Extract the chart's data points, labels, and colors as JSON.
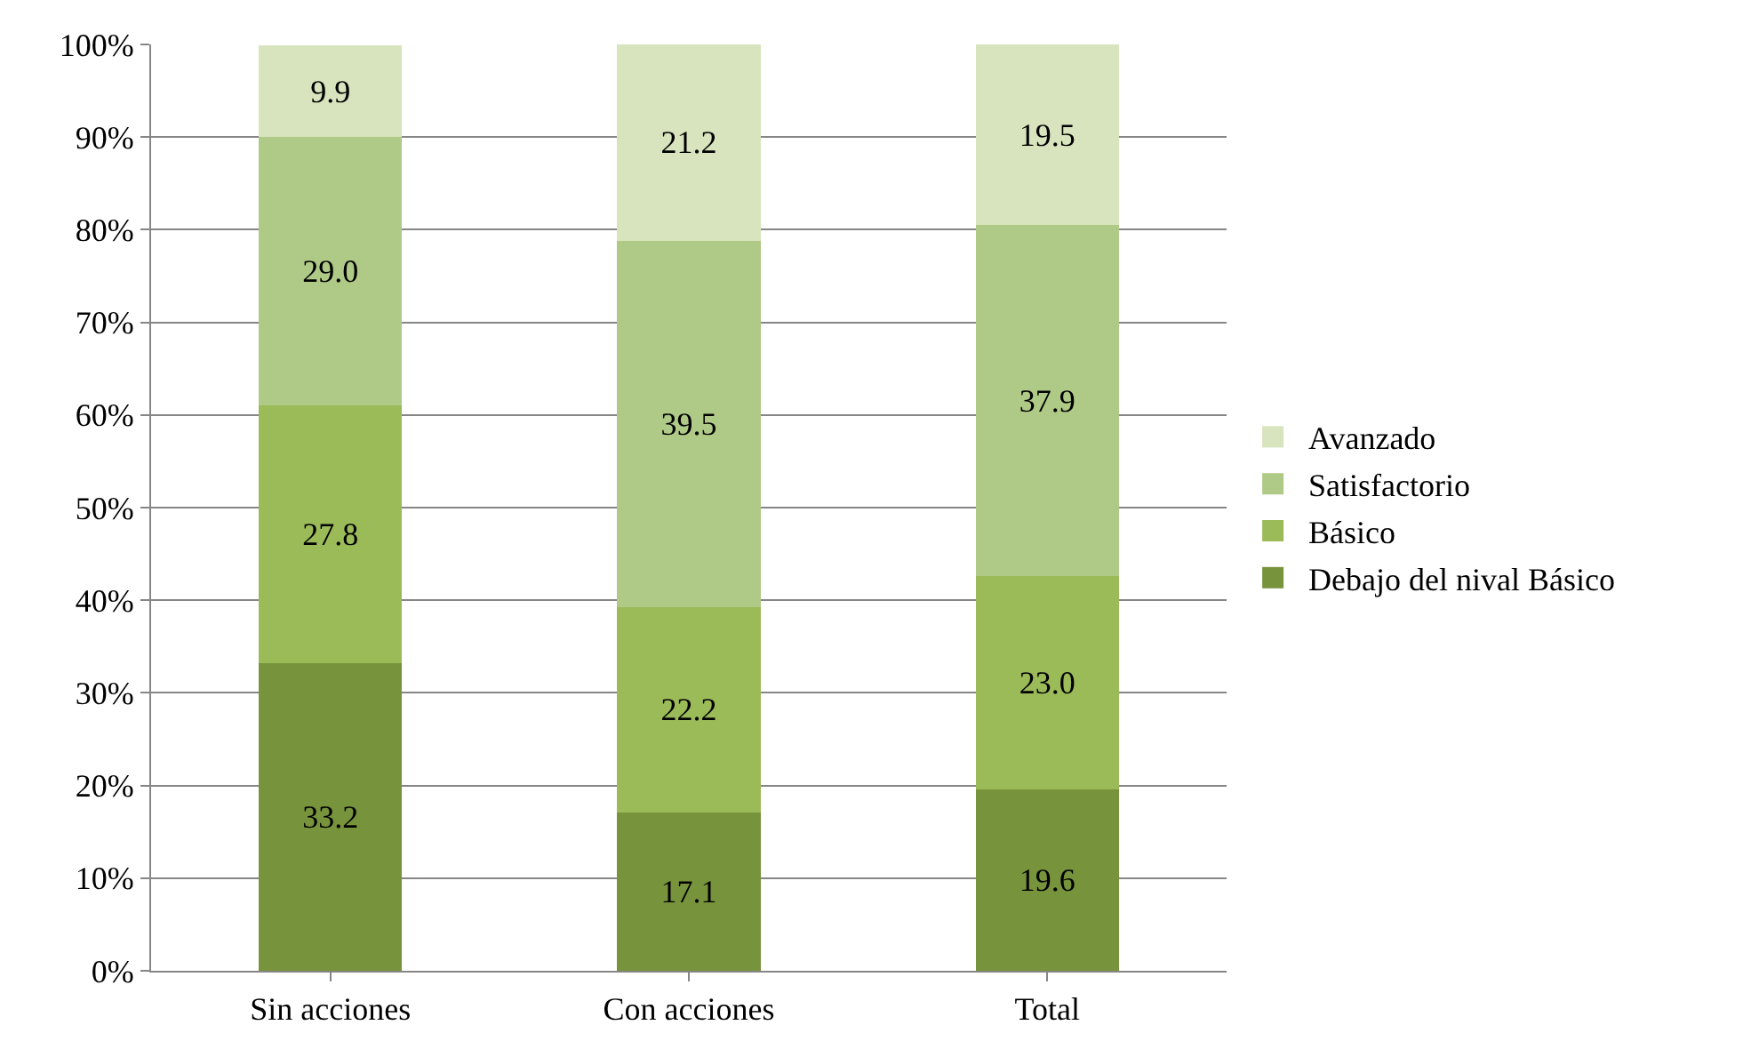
{
  "chart_data": {
    "type": "bar",
    "stacked": true,
    "categories": [
      "Sin acciones",
      "Con acciones",
      "Total"
    ],
    "series": [
      {
        "name": "Debajo del nival Básico",
        "color": "#77933c",
        "values": [
          33.2,
          17.1,
          19.6
        ],
        "value_labels": [
          "33.2",
          "17.1",
          "19.6"
        ]
      },
      {
        "name": "Básico",
        "color": "#9bbb59",
        "values": [
          27.8,
          22.2,
          23.0
        ],
        "value_labels": [
          "27.8",
          "22.2",
          "23.0"
        ]
      },
      {
        "name": "Satisfactorio",
        "color": "#afc986",
        "values": [
          29.0,
          39.5,
          37.9
        ],
        "value_labels": [
          "29.0",
          "39.5",
          "37.9"
        ]
      },
      {
        "name": "Avanzado",
        "color": "#d7e4bd",
        "values": [
          9.9,
          21.2,
          19.5
        ],
        "value_labels": [
          "9.9",
          "21.2",
          "19.5"
        ]
      }
    ],
    "ylim": [
      0,
      100
    ],
    "yticks": [
      {
        "value": 0,
        "label": "0%"
      },
      {
        "value": 10,
        "label": "10%"
      },
      {
        "value": 20,
        "label": "20%"
      },
      {
        "value": 30,
        "label": "30%"
      },
      {
        "value": 40,
        "label": "40%"
      },
      {
        "value": 50,
        "label": "50%"
      },
      {
        "value": 60,
        "label": "60%"
      },
      {
        "value": 70,
        "label": "70%"
      },
      {
        "value": 80,
        "label": "80%"
      },
      {
        "value": 90,
        "label": "90%"
      },
      {
        "value": 100,
        "label": "100%"
      }
    ],
    "grid": "y",
    "legend": "right"
  }
}
